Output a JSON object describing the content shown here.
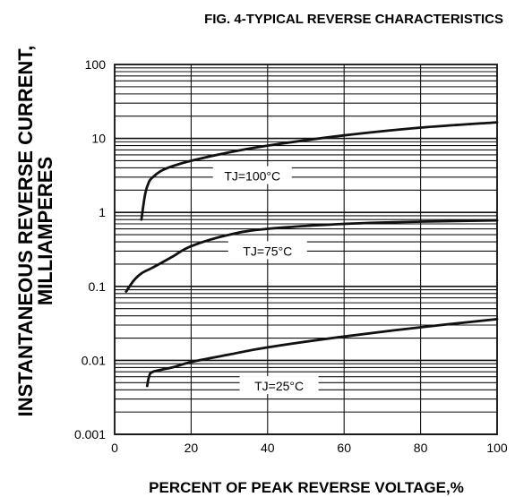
{
  "chart_data": {
    "type": "line",
    "title": "FIG. 4-TYPICAL REVERSE CHARACTERISTICS",
    "xlabel": "PERCENT OF PEAK REVERSE VOLTAGE,%",
    "ylabel_line1": "INSTANTANEOUS REVERSE CURRENT,",
    "ylabel_line2": "MILLIAMPERES",
    "x_ticks": [
      "0",
      "20",
      "40",
      "60",
      "80",
      "100"
    ],
    "y_ticks": [
      "100",
      "10",
      "1",
      "0.1",
      "0.01",
      "0.001"
    ],
    "xlim": [
      0,
      100
    ],
    "ylim": [
      0.001,
      100
    ],
    "y_scale": "log",
    "grid": true,
    "series": [
      {
        "name": "TJ=100°C",
        "x": [
          7,
          8,
          9,
          10,
          12,
          15,
          20,
          30,
          40,
          60,
          80,
          100
        ],
        "y": [
          0.8,
          1.8,
          2.6,
          3.0,
          3.6,
          4.2,
          5.0,
          6.5,
          8.0,
          11.0,
          14.0,
          16.5
        ]
      },
      {
        "name": "TJ=75°C",
        "x": [
          3,
          5,
          7,
          10,
          15,
          20,
          30,
          40,
          60,
          80,
          100
        ],
        "y": [
          0.085,
          0.12,
          0.15,
          0.18,
          0.25,
          0.35,
          0.5,
          0.6,
          0.7,
          0.75,
          0.78
        ]
      },
      {
        "name": "TJ=25°C",
        "x": [
          8.5,
          9,
          10,
          15,
          20,
          30,
          40,
          60,
          80,
          100
        ],
        "y": [
          0.0045,
          0.006,
          0.007,
          0.008,
          0.0095,
          0.012,
          0.015,
          0.021,
          0.028,
          0.036
        ]
      }
    ]
  }
}
